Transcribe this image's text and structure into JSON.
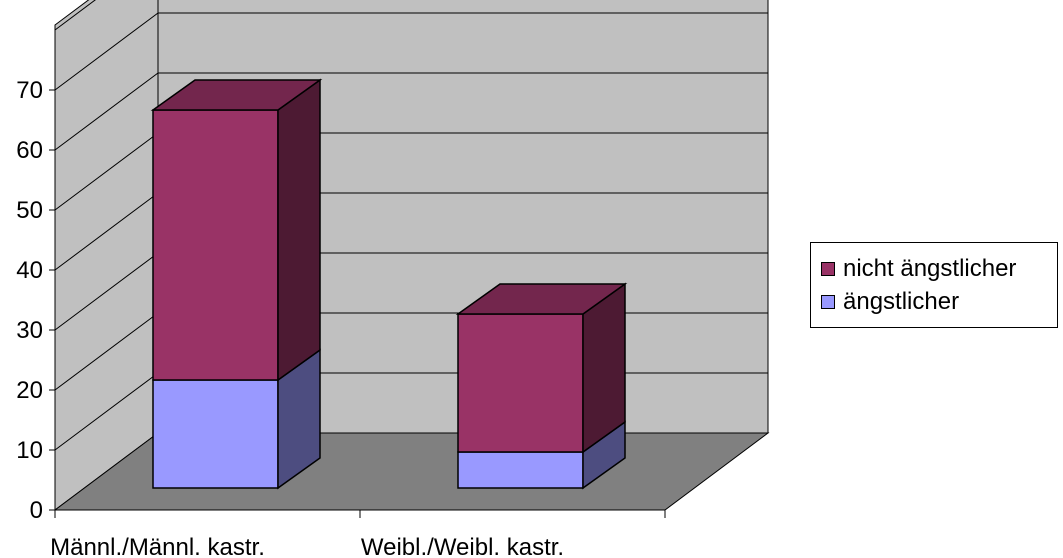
{
  "chart_data": {
    "type": "bar",
    "stacked": true,
    "three_d": true,
    "categories": [
      "Männl./Männl. kastr.",
      "Weibl./Weibl. kastr."
    ],
    "series": [
      {
        "name": "ängstlicher",
        "values": [
          18,
          6
        ],
        "color": "#9999ff"
      },
      {
        "name": "nicht ängstlicher",
        "values": [
          45,
          23
        ],
        "color": "#993366"
      }
    ],
    "y_ticks": [
      "0",
      "10",
      "20",
      "30",
      "40",
      "50",
      "60",
      "70"
    ],
    "ylim": [
      0,
      70
    ],
    "grid": true,
    "legend_position": "right"
  },
  "colors": {
    "wall": "#c0c0c0",
    "floor": "#808080",
    "grid": "#000000"
  }
}
